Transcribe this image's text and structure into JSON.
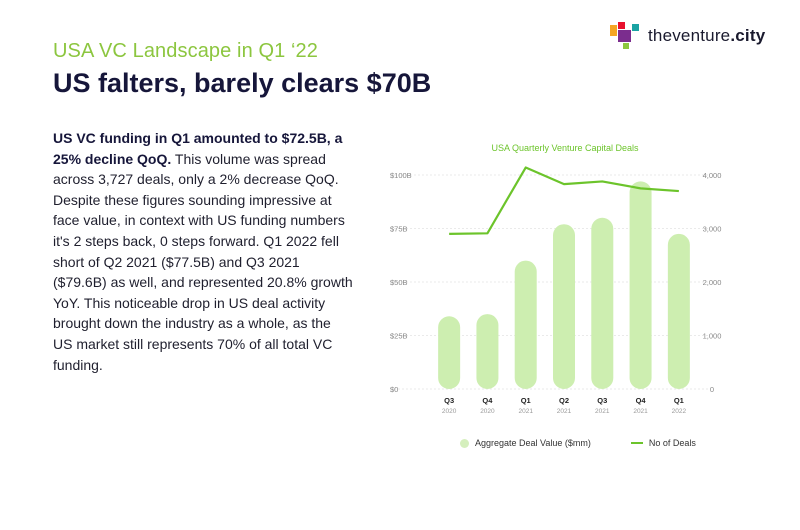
{
  "header": {
    "subtitle": "USA VC Landscape in Q1 ‘22",
    "title": "US falters, barely clears $70B"
  },
  "logo": {
    "name_part1": "theventure",
    "name_part2": ".city",
    "icon": "venture-city-logo-icon",
    "colors": [
      "#f5a623",
      "#e8112d",
      "#7b2d8e",
      "#1aa3a3",
      "#8cc63f"
    ]
  },
  "body": {
    "bold_lead": "US VC funding in Q1 amounted to $72.5B, a 25% decline QoQ.",
    "text": " This volume was spread across 3,727 deals, only a 2% decrease QoQ. Despite these figures sounding impressive at face value, in context with US funding numbers it's 2 steps back, 0 steps forward. Q1 2022 fell short of Q2 2021 ($77.5B) and Q3 2021 ($79.6B) as well, and represented 20.8% growth YoY. This noticeable drop in US deal activity brought down the industry as a whole, as the US market still represents 70% of all total VC funding."
  },
  "chart_data": {
    "type": "bar",
    "title": "USA Quarterly Venture Capital Deals",
    "categories": [
      "Q3",
      "Q4",
      "Q1",
      "Q2",
      "Q3",
      "Q4",
      "Q1"
    ],
    "category_years": [
      "2020",
      "2020",
      "2021",
      "2021",
      "2021",
      "2021",
      "2022"
    ],
    "series": [
      {
        "name": "Aggregate Deal Value ($mm)",
        "type": "bar",
        "axis": "left",
        "color": "#cdeeb0",
        "values": [
          34000,
          35000,
          60000,
          77000,
          80000,
          97000,
          72500
        ]
      },
      {
        "name": "No of Deals",
        "type": "line",
        "axis": "right",
        "color": "#6cc42b",
        "values": [
          2900,
          2910,
          4140,
          3830,
          3880,
          3750,
          3700
        ]
      }
    ],
    "left_axis": {
      "ticks": [
        0,
        25,
        50,
        75,
        100
      ],
      "tick_labels": [
        "$0",
        "$25B",
        "$50B",
        "$75B",
        "$100B"
      ],
      "ylim": [
        0,
        100000
      ]
    },
    "right_axis": {
      "ticks": [
        0,
        1000,
        2000,
        3000,
        4000
      ],
      "tick_labels": [
        "0",
        "1,000",
        "2,000",
        "3,000",
        "4,000"
      ],
      "ylim": [
        0,
        4000
      ]
    },
    "legend": [
      "Aggregate Deal Value ($mm)",
      "No of Deals"
    ],
    "legend_position": "bottom",
    "grid": true
  }
}
